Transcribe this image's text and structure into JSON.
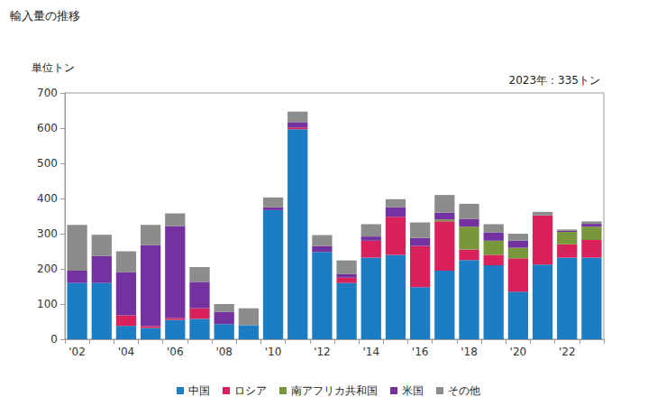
{
  "chart_data": {
    "type": "bar",
    "title": "輸入量の推移",
    "y_label": "単位トン",
    "annotation": "2023年：335トン",
    "categories": [
      "'02",
      null,
      "'04",
      null,
      "'06",
      null,
      "'08",
      null,
      "'10",
      null,
      "'12",
      null,
      "'14",
      null,
      "'16",
      null,
      "'18",
      null,
      "'20",
      null,
      "'22",
      null
    ],
    "series": [
      {
        "name": "中国",
        "color": "#1c7cc4",
        "values": [
          160,
          160,
          38,
          32,
          55,
          58,
          43,
          40,
          367,
          597,
          248,
          160,
          232,
          240,
          148,
          195,
          225,
          210,
          135,
          212,
          232,
          232
        ]
      },
      {
        "name": "ロシア",
        "color": "#d9225c",
        "values": [
          0,
          0,
          30,
          5,
          5,
          30,
          0,
          0,
          0,
          5,
          0,
          15,
          48,
          108,
          117,
          140,
          30,
          30,
          95,
          140,
          38,
          50
        ]
      },
      {
        "name": "南アフリカ共和国",
        "color": "#77973a",
        "values": [
          0,
          0,
          0,
          0,
          0,
          0,
          0,
          0,
          0,
          0,
          0,
          0,
          0,
          0,
          0,
          5,
          65,
          40,
          30,
          0,
          35,
          38
        ]
      },
      {
        "name": "米国",
        "color": "#7332a0",
        "values": [
          35,
          77,
          122,
          230,
          262,
          75,
          35,
          0,
          8,
          15,
          17,
          10,
          12,
          27,
          23,
          20,
          22,
          23,
          20,
          0,
          3,
          8
        ]
      },
      {
        "name": "その他",
        "color": "#8c8c8c",
        "values": [
          130,
          60,
          60,
          58,
          36,
          42,
          22,
          48,
          28,
          30,
          31,
          39,
          35,
          23,
          44,
          50,
          43,
          24,
          20,
          10,
          4,
          7
        ]
      }
    ],
    "ylim": [
      0,
      700
    ],
    "yticks": [
      0,
      100,
      200,
      300,
      400,
      500,
      600,
      700
    ],
    "stacked": true,
    "grid": false,
    "legend": "bottom"
  }
}
